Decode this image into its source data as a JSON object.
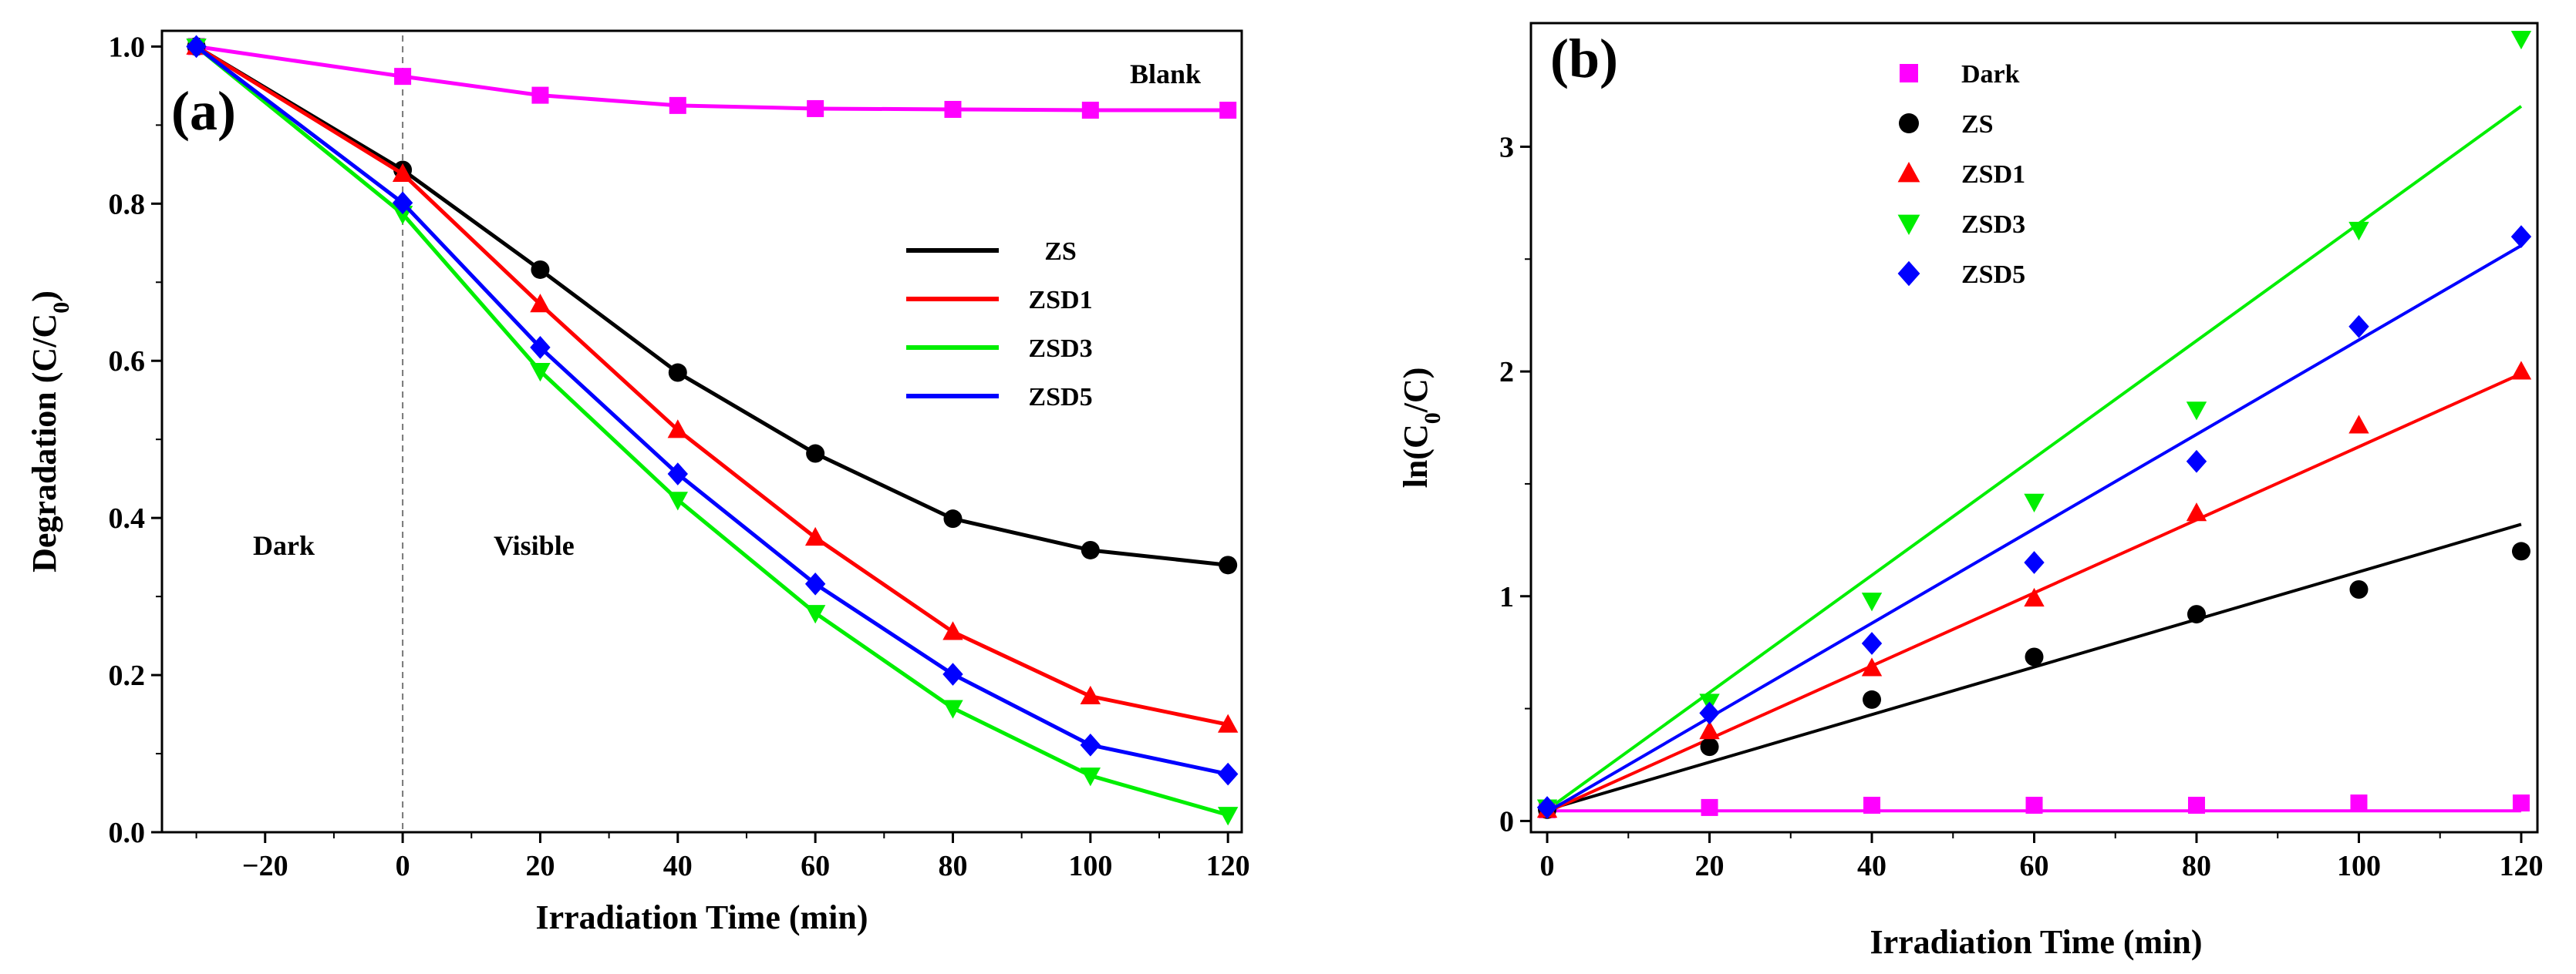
{
  "chart_data": [
    {
      "panel_label": "(a)",
      "type": "line",
      "xlabel": "Irradiation Time (min)",
      "ylabel_main": "Degradation (C/C",
      "ylabel_sub": "0",
      "ylabel_tail": ")",
      "xlim": [
        -35,
        122
      ],
      "ylim": [
        0.0,
        1.02
      ],
      "x": [
        -30,
        0,
        20,
        40,
        60,
        80,
        100,
        120
      ],
      "xticks": [
        -20,
        0,
        20,
        40,
        60,
        80,
        100,
        120
      ],
      "xtick_labels": [
        "−20",
        "0",
        "20",
        "40",
        "60",
        "80",
        "100",
        "120"
      ],
      "yticks": [
        0.0,
        0.2,
        0.4,
        0.6,
        0.8,
        1.0
      ],
      "ytick_labels": [
        "0.0",
        "0.2",
        "0.4",
        "0.6",
        "0.8",
        "1.0"
      ],
      "annotations": {
        "dark": "Dark",
        "visible": "Visible",
        "blank": "Blank"
      },
      "divider_x": 0,
      "series": [
        {
          "name": "Blank",
          "color": "#ff00ff",
          "marker": "square",
          "values": [
            1.0,
            0.962,
            0.938,
            0.925,
            0.921,
            0.92,
            0.919,
            0.919
          ],
          "in_legend": false
        },
        {
          "name": "ZS",
          "color": "#000000",
          "marker": "circle",
          "values": [
            1.0,
            0.843,
            0.716,
            0.585,
            0.482,
            0.399,
            0.359,
            0.34
          ],
          "in_legend": true
        },
        {
          "name": "ZSD1",
          "color": "#ff0000",
          "marker": "triangle-up",
          "values": [
            1.0,
            0.838,
            0.672,
            0.512,
            0.375,
            0.255,
            0.173,
            0.137
          ],
          "in_legend": true
        },
        {
          "name": "ZSD3",
          "color": "#00ee00",
          "marker": "triangle-down",
          "values": [
            1.0,
            0.787,
            0.587,
            0.423,
            0.279,
            0.158,
            0.072,
            0.022
          ],
          "in_legend": true
        },
        {
          "name": "ZSD5",
          "color": "#0000ff",
          "marker": "diamond",
          "values": [
            1.0,
            0.801,
            0.617,
            0.456,
            0.316,
            0.201,
            0.111,
            0.074
          ],
          "in_legend": true
        }
      ]
    },
    {
      "panel_label": "(b)",
      "type": "scatter",
      "xlabel": "Irradiation Time (min)",
      "ylabel_main": "ln(C",
      "ylabel_sub": "0",
      "ylabel_tail": "/C)",
      "xlim": [
        -2,
        122
      ],
      "ylim": [
        -0.05,
        3.55
      ],
      "x": [
        0,
        20,
        40,
        60,
        80,
        100,
        120
      ],
      "xticks": [
        0,
        20,
        40,
        60,
        80,
        100,
        120
      ],
      "xtick_labels": [
        "0",
        "20",
        "40",
        "60",
        "80",
        "100",
        "120"
      ],
      "yticks": [
        0,
        1,
        2,
        3
      ],
      "ytick_labels": [
        "0",
        "1",
        "2",
        "3"
      ],
      "series": [
        {
          "name": "Dark",
          "color": "#ff00ff",
          "marker": "square",
          "values": [
            0.05,
            0.06,
            0.07,
            0.07,
            0.07,
            0.08,
            0.08
          ],
          "fit": [
            0.045,
            0.045
          ]
        },
        {
          "name": "ZS",
          "color": "#000000",
          "marker": "circle",
          "values": [
            0.05,
            0.33,
            0.54,
            0.73,
            0.92,
            1.03,
            1.2
          ],
          "fit": [
            0.05,
            1.32
          ]
        },
        {
          "name": "ZSD1",
          "color": "#ff0000",
          "marker": "triangle-up",
          "values": [
            0.05,
            0.4,
            0.68,
            0.99,
            1.37,
            1.76,
            2.0
          ],
          "fit": [
            0.04,
            1.99
          ]
        },
        {
          "name": "ZSD3",
          "color": "#00ee00",
          "marker": "triangle-down",
          "values": [
            0.06,
            0.53,
            0.98,
            1.42,
            1.83,
            2.63,
            3.48
          ],
          "fit": [
            0.05,
            3.18
          ]
        },
        {
          "name": "ZSD5",
          "color": "#0000ff",
          "marker": "diamond",
          "values": [
            0.06,
            0.48,
            0.79,
            1.15,
            1.6,
            2.2,
            2.6
          ],
          "fit": [
            0.04,
            2.56
          ]
        }
      ]
    }
  ]
}
